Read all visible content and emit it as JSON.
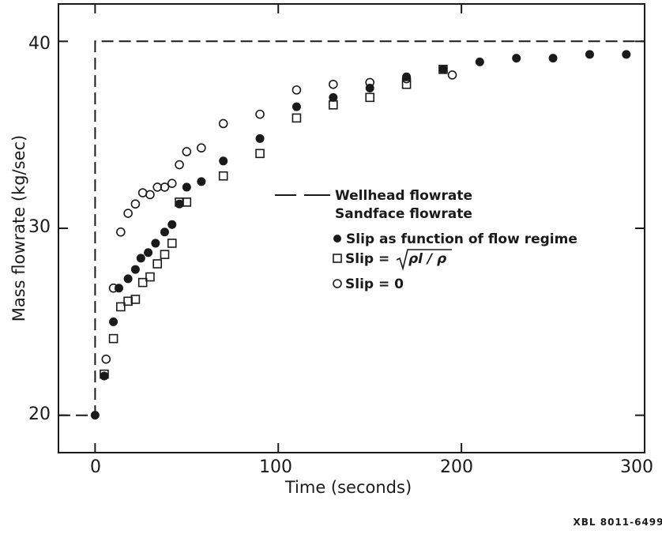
{
  "chart_data": {
    "type": "scatter",
    "xlabel": "Time (seconds)",
    "ylabel": "Mass flowrate (kg/sec)",
    "xlim": [
      -20,
      300
    ],
    "ylim": [
      18,
      42
    ],
    "x_ticks": [
      0,
      100,
      200,
      300
    ],
    "y_ticks": [
      20,
      30,
      40
    ],
    "grid": false,
    "legend_position": "center-right",
    "wellhead_flowrate": {
      "name": "Wellhead flowrate",
      "style": "dashed",
      "points": [
        [
          -20,
          20
        ],
        [
          0,
          20
        ],
        [
          0,
          40
        ],
        [
          300,
          40
        ]
      ]
    },
    "legend_subtitle": "Sandface flowrate",
    "series": [
      {
        "name": "Slip as function of flow regime",
        "marker": "filled-circle",
        "points": [
          [
            0,
            20.0
          ],
          [
            5,
            22.1
          ],
          [
            10,
            25.0
          ],
          [
            13,
            26.8
          ],
          [
            18,
            27.3
          ],
          [
            22,
            27.8
          ],
          [
            25,
            28.4
          ],
          [
            29,
            28.7
          ],
          [
            33,
            29.2
          ],
          [
            38,
            29.8
          ],
          [
            42,
            30.2
          ],
          [
            46,
            31.3
          ],
          [
            50,
            32.2
          ],
          [
            58,
            32.5
          ],
          [
            70,
            33.6
          ],
          [
            90,
            34.8
          ],
          [
            110,
            36.5
          ],
          [
            130,
            37.0
          ],
          [
            150,
            37.5
          ],
          [
            170,
            38.1
          ],
          [
            190,
            38.5
          ],
          [
            210,
            38.9
          ],
          [
            230,
            39.1
          ],
          [
            250,
            39.1
          ],
          [
            270,
            39.3
          ],
          [
            290,
            39.3
          ]
        ]
      },
      {
        "name": "Slip = √(ρl/ρ)",
        "marker": "open-square",
        "points": [
          [
            5,
            22.2
          ],
          [
            10,
            24.1
          ],
          [
            14,
            25.8
          ],
          [
            18,
            26.1
          ],
          [
            22,
            26.2
          ],
          [
            26,
            27.1
          ],
          [
            30,
            27.4
          ],
          [
            34,
            28.1
          ],
          [
            38,
            28.6
          ],
          [
            42,
            29.2
          ],
          [
            46,
            31.4
          ],
          [
            50,
            31.4
          ],
          [
            70,
            32.8
          ],
          [
            90,
            34.0
          ],
          [
            110,
            35.9
          ],
          [
            130,
            36.6
          ],
          [
            150,
            37.0
          ],
          [
            170,
            37.7
          ],
          [
            190,
            38.5
          ]
        ]
      },
      {
        "name": "Slip = 0",
        "marker": "open-circle",
        "points": [
          [
            6,
            23.0
          ],
          [
            10,
            26.8
          ],
          [
            14,
            29.8
          ],
          [
            18,
            30.8
          ],
          [
            22,
            31.3
          ],
          [
            26,
            31.9
          ],
          [
            30,
            31.8
          ],
          [
            34,
            32.2
          ],
          [
            38,
            32.2
          ],
          [
            42,
            32.4
          ],
          [
            46,
            33.4
          ],
          [
            50,
            34.1
          ],
          [
            58,
            34.3
          ],
          [
            70,
            35.6
          ],
          [
            90,
            36.1
          ],
          [
            110,
            37.4
          ],
          [
            130,
            37.7
          ],
          [
            150,
            37.8
          ],
          [
            170,
            38.0
          ],
          [
            195,
            38.2
          ]
        ]
      }
    ]
  },
  "legend": {
    "wellhead": "Wellhead flowrate",
    "subtitle": "Sandface flowrate",
    "slip_regime": "Slip as function of flow regime",
    "slip_sqrt_prefix": "Slip =",
    "slip_sqrt_formula": "ρl / ρ",
    "slip_zero": "Slip = 0"
  },
  "footer": {
    "code": "XBL 8011-6499"
  }
}
